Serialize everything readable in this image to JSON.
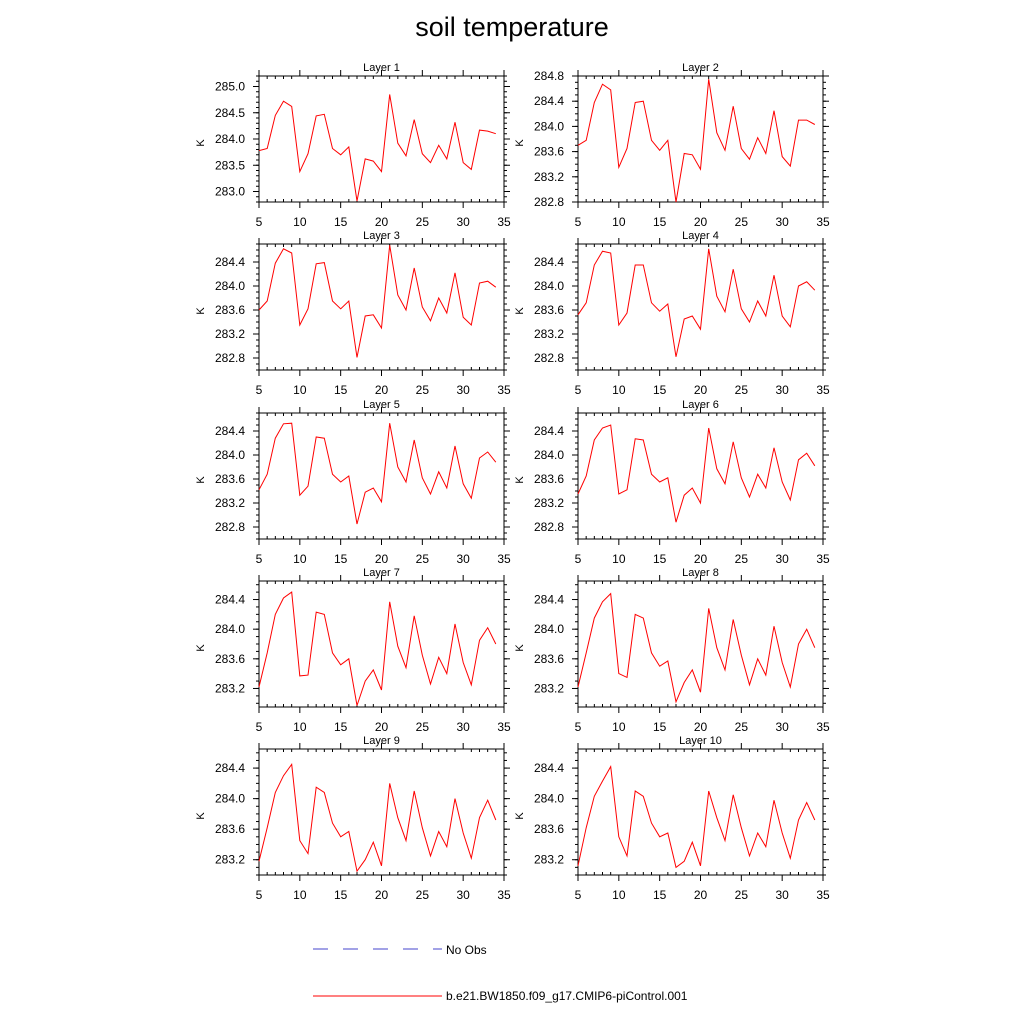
{
  "chart_data": {
    "title": "soil temperature",
    "type": "line",
    "x": [
      5,
      6,
      7,
      8,
      9,
      10,
      11,
      12,
      13,
      14,
      15,
      16,
      17,
      18,
      19,
      20,
      21,
      22,
      23,
      24,
      25,
      26,
      27,
      28,
      29,
      30,
      31,
      32,
      33,
      34
    ],
    "xlim": [
      5,
      35
    ],
    "xticks": [
      "5",
      "10",
      "15",
      "20",
      "25",
      "30",
      "35"
    ],
    "ylabel": "K",
    "grid": false,
    "series_color": "#ff0000",
    "obs_color": "#4444cc",
    "legend": [
      {
        "label": "No Obs",
        "style": "dashed",
        "color": "#4444cc"
      },
      {
        "label": "b.e21.BW1850.f09_g17.CMIP6-piControl.001",
        "style": "solid",
        "color": "#ff0000"
      }
    ],
    "panels": [
      {
        "title": "Layer 1",
        "ylim": [
          282.8,
          285.2
        ],
        "yticks": [
          "283.0",
          "283.5",
          "284.0",
          "284.5",
          "285.0"
        ],
        "series": [
          {
            "name": "b.e21.BW1850.f09_g17.CMIP6-piControl.001",
            "values": [
              283.78,
              283.82,
              284.45,
              284.72,
              284.62,
              283.38,
              283.72,
              284.44,
              284.47,
              283.82,
              283.7,
              283.85,
              282.82,
              283.62,
              283.58,
              283.38,
              284.85,
              283.92,
              283.68,
              284.37,
              283.72,
              283.55,
              283.88,
              283.62,
              284.32,
              283.55,
              283.42,
              284.17,
              284.15,
              284.1
            ]
          }
        ]
      },
      {
        "title": "Layer 2",
        "ylim": [
          282.8,
          284.8
        ],
        "yticks": [
          "282.8",
          "283.2",
          "283.6",
          "284.0",
          "284.4",
          "284.8"
        ],
        "series": [
          {
            "name": "b.e21.BW1850.f09_g17.CMIP6-piControl.001",
            "values": [
              283.7,
              283.78,
              284.38,
              284.67,
              284.58,
              283.35,
              283.65,
              284.38,
              284.4,
              283.78,
              283.62,
              283.78,
              282.8,
              283.57,
              283.55,
              283.32,
              284.75,
              283.9,
              283.62,
              284.32,
              283.65,
              283.48,
              283.82,
              283.57,
              284.25,
              283.52,
              283.37,
              284.1,
              284.1,
              284.03
            ]
          }
        ]
      },
      {
        "title": "Layer 3",
        "ylim": [
          282.6,
          284.7
        ],
        "yticks": [
          "282.8",
          "283.2",
          "283.6",
          "284.0",
          "284.4"
        ],
        "series": [
          {
            "name": "b.e21.BW1850.f09_g17.CMIP6-piControl.001",
            "values": [
              283.6,
              283.75,
              284.38,
              284.62,
              284.55,
              283.35,
              283.62,
              284.37,
              284.39,
              283.75,
              283.62,
              283.75,
              282.81,
              283.5,
              283.52,
              283.3,
              284.68,
              283.85,
              283.6,
              284.3,
              283.65,
              283.42,
              283.8,
              283.55,
              284.22,
              283.48,
              283.35,
              284.05,
              284.08,
              283.98
            ]
          }
        ]
      },
      {
        "title": "Layer 4",
        "ylim": [
          282.6,
          284.7
        ],
        "yticks": [
          "282.8",
          "283.2",
          "283.6",
          "284.0",
          "284.4"
        ],
        "series": [
          {
            "name": "b.e21.BW1850.f09_g17.CMIP6-piControl.001",
            "values": [
              283.52,
              283.72,
              284.35,
              284.58,
              284.55,
              283.35,
              283.55,
              284.35,
              284.35,
              283.72,
              283.58,
              283.7,
              282.82,
              283.45,
              283.5,
              283.28,
              284.62,
              283.83,
              283.57,
              284.28,
              283.62,
              283.4,
              283.75,
              283.5,
              284.18,
              283.5,
              283.32,
              284.0,
              284.07,
              283.93
            ]
          }
        ]
      },
      {
        "title": "Layer 5",
        "ylim": [
          282.6,
          284.7
        ],
        "yticks": [
          "282.8",
          "283.2",
          "283.6",
          "284.0",
          "284.4"
        ],
        "series": [
          {
            "name": "b.e21.BW1850.f09_g17.CMIP6-piControl.001",
            "values": [
              283.42,
              283.68,
              284.28,
              284.52,
              284.53,
              283.33,
              283.48,
              284.3,
              284.28,
              283.68,
              283.55,
              283.65,
              282.85,
              283.38,
              283.45,
              283.22,
              284.53,
              283.8,
              283.55,
              284.25,
              283.62,
              283.35,
              283.72,
              283.45,
              284.15,
              283.52,
              283.28,
              283.95,
              284.05,
              283.88
            ]
          }
        ]
      },
      {
        "title": "Layer 6",
        "ylim": [
          282.6,
          284.7
        ],
        "yticks": [
          "282.8",
          "283.2",
          "283.6",
          "284.0",
          "284.4"
        ],
        "series": [
          {
            "name": "b.e21.BW1850.f09_g17.CMIP6-piControl.001",
            "values": [
              283.35,
              283.65,
              284.25,
              284.45,
              284.5,
              283.35,
              283.42,
              284.27,
              284.25,
              283.68,
              283.55,
              283.62,
              282.88,
              283.33,
              283.45,
              283.2,
              284.45,
              283.77,
              283.52,
              284.22,
              283.62,
              283.3,
              283.68,
              283.45,
              284.12,
              283.55,
              283.25,
              283.92,
              284.03,
              283.82
            ]
          }
        ]
      },
      {
        "title": "Layer 7",
        "ylim": [
          282.95,
          284.65
        ],
        "yticks": [
          "283.2",
          "283.6",
          "284.0",
          "284.4"
        ],
        "series": [
          {
            "name": "b.e21.BW1850.f09_g17.CMIP6-piControl.001",
            "values": [
              283.22,
              283.68,
              284.2,
              284.42,
              284.5,
              283.37,
              283.38,
              284.23,
              284.2,
              283.68,
              283.52,
              283.6,
              282.97,
              283.3,
              283.45,
              283.18,
              284.37,
              283.77,
              283.48,
              284.18,
              283.65,
              283.26,
              283.62,
              283.4,
              284.07,
              283.55,
              283.25,
              283.85,
              284.02,
              283.8
            ]
          }
        ]
      },
      {
        "title": "Layer 8",
        "ylim": [
          282.95,
          284.65
        ],
        "yticks": [
          "283.2",
          "283.6",
          "284.0",
          "284.4"
        ],
        "series": [
          {
            "name": "b.e21.BW1850.f09_g17.CMIP6-piControl.001",
            "values": [
              283.22,
              283.68,
              284.15,
              284.37,
              284.48,
              283.4,
              283.35,
              284.2,
              284.15,
              283.68,
              283.5,
              283.57,
              283.02,
              283.28,
              283.45,
              283.15,
              284.28,
              283.75,
              283.45,
              284.13,
              283.65,
              283.25,
              283.6,
              283.38,
              284.04,
              283.55,
              283.22,
              283.8,
              284.0,
              283.75
            ]
          }
        ]
      },
      {
        "title": "Layer 9",
        "ylim": [
          283.0,
          284.65
        ],
        "yticks": [
          "283.2",
          "283.6",
          "284.0",
          "284.4"
        ],
        "series": [
          {
            "name": "b.e21.BW1850.f09_g17.CMIP6-piControl.001",
            "values": [
              283.18,
              283.62,
              284.08,
              284.3,
              284.45,
              283.45,
              283.28,
              284.15,
              284.08,
              283.68,
              283.5,
              283.57,
              283.05,
              283.2,
              283.43,
              283.12,
              284.2,
              283.75,
              283.45,
              284.1,
              283.62,
              283.25,
              283.57,
              283.37,
              284.0,
              283.55,
              283.22,
              283.75,
              283.98,
              283.72
            ]
          }
        ]
      },
      {
        "title": "Layer 10",
        "ylim": [
          283.0,
          284.65
        ],
        "yticks": [
          "283.2",
          "283.6",
          "284.0",
          "284.4"
        ],
        "series": [
          {
            "name": "b.e21.BW1850.f09_g17.CMIP6-piControl.001",
            "values": [
              283.12,
              283.62,
              284.03,
              284.23,
              284.42,
              283.5,
              283.25,
              284.1,
              284.03,
              283.68,
              283.5,
              283.55,
              283.1,
              283.18,
              283.43,
              283.12,
              284.1,
              283.75,
              283.45,
              284.05,
              283.62,
              283.25,
              283.55,
              283.37,
              283.98,
              283.55,
              283.22,
              283.72,
              283.95,
              283.72
            ]
          }
        ]
      }
    ]
  }
}
